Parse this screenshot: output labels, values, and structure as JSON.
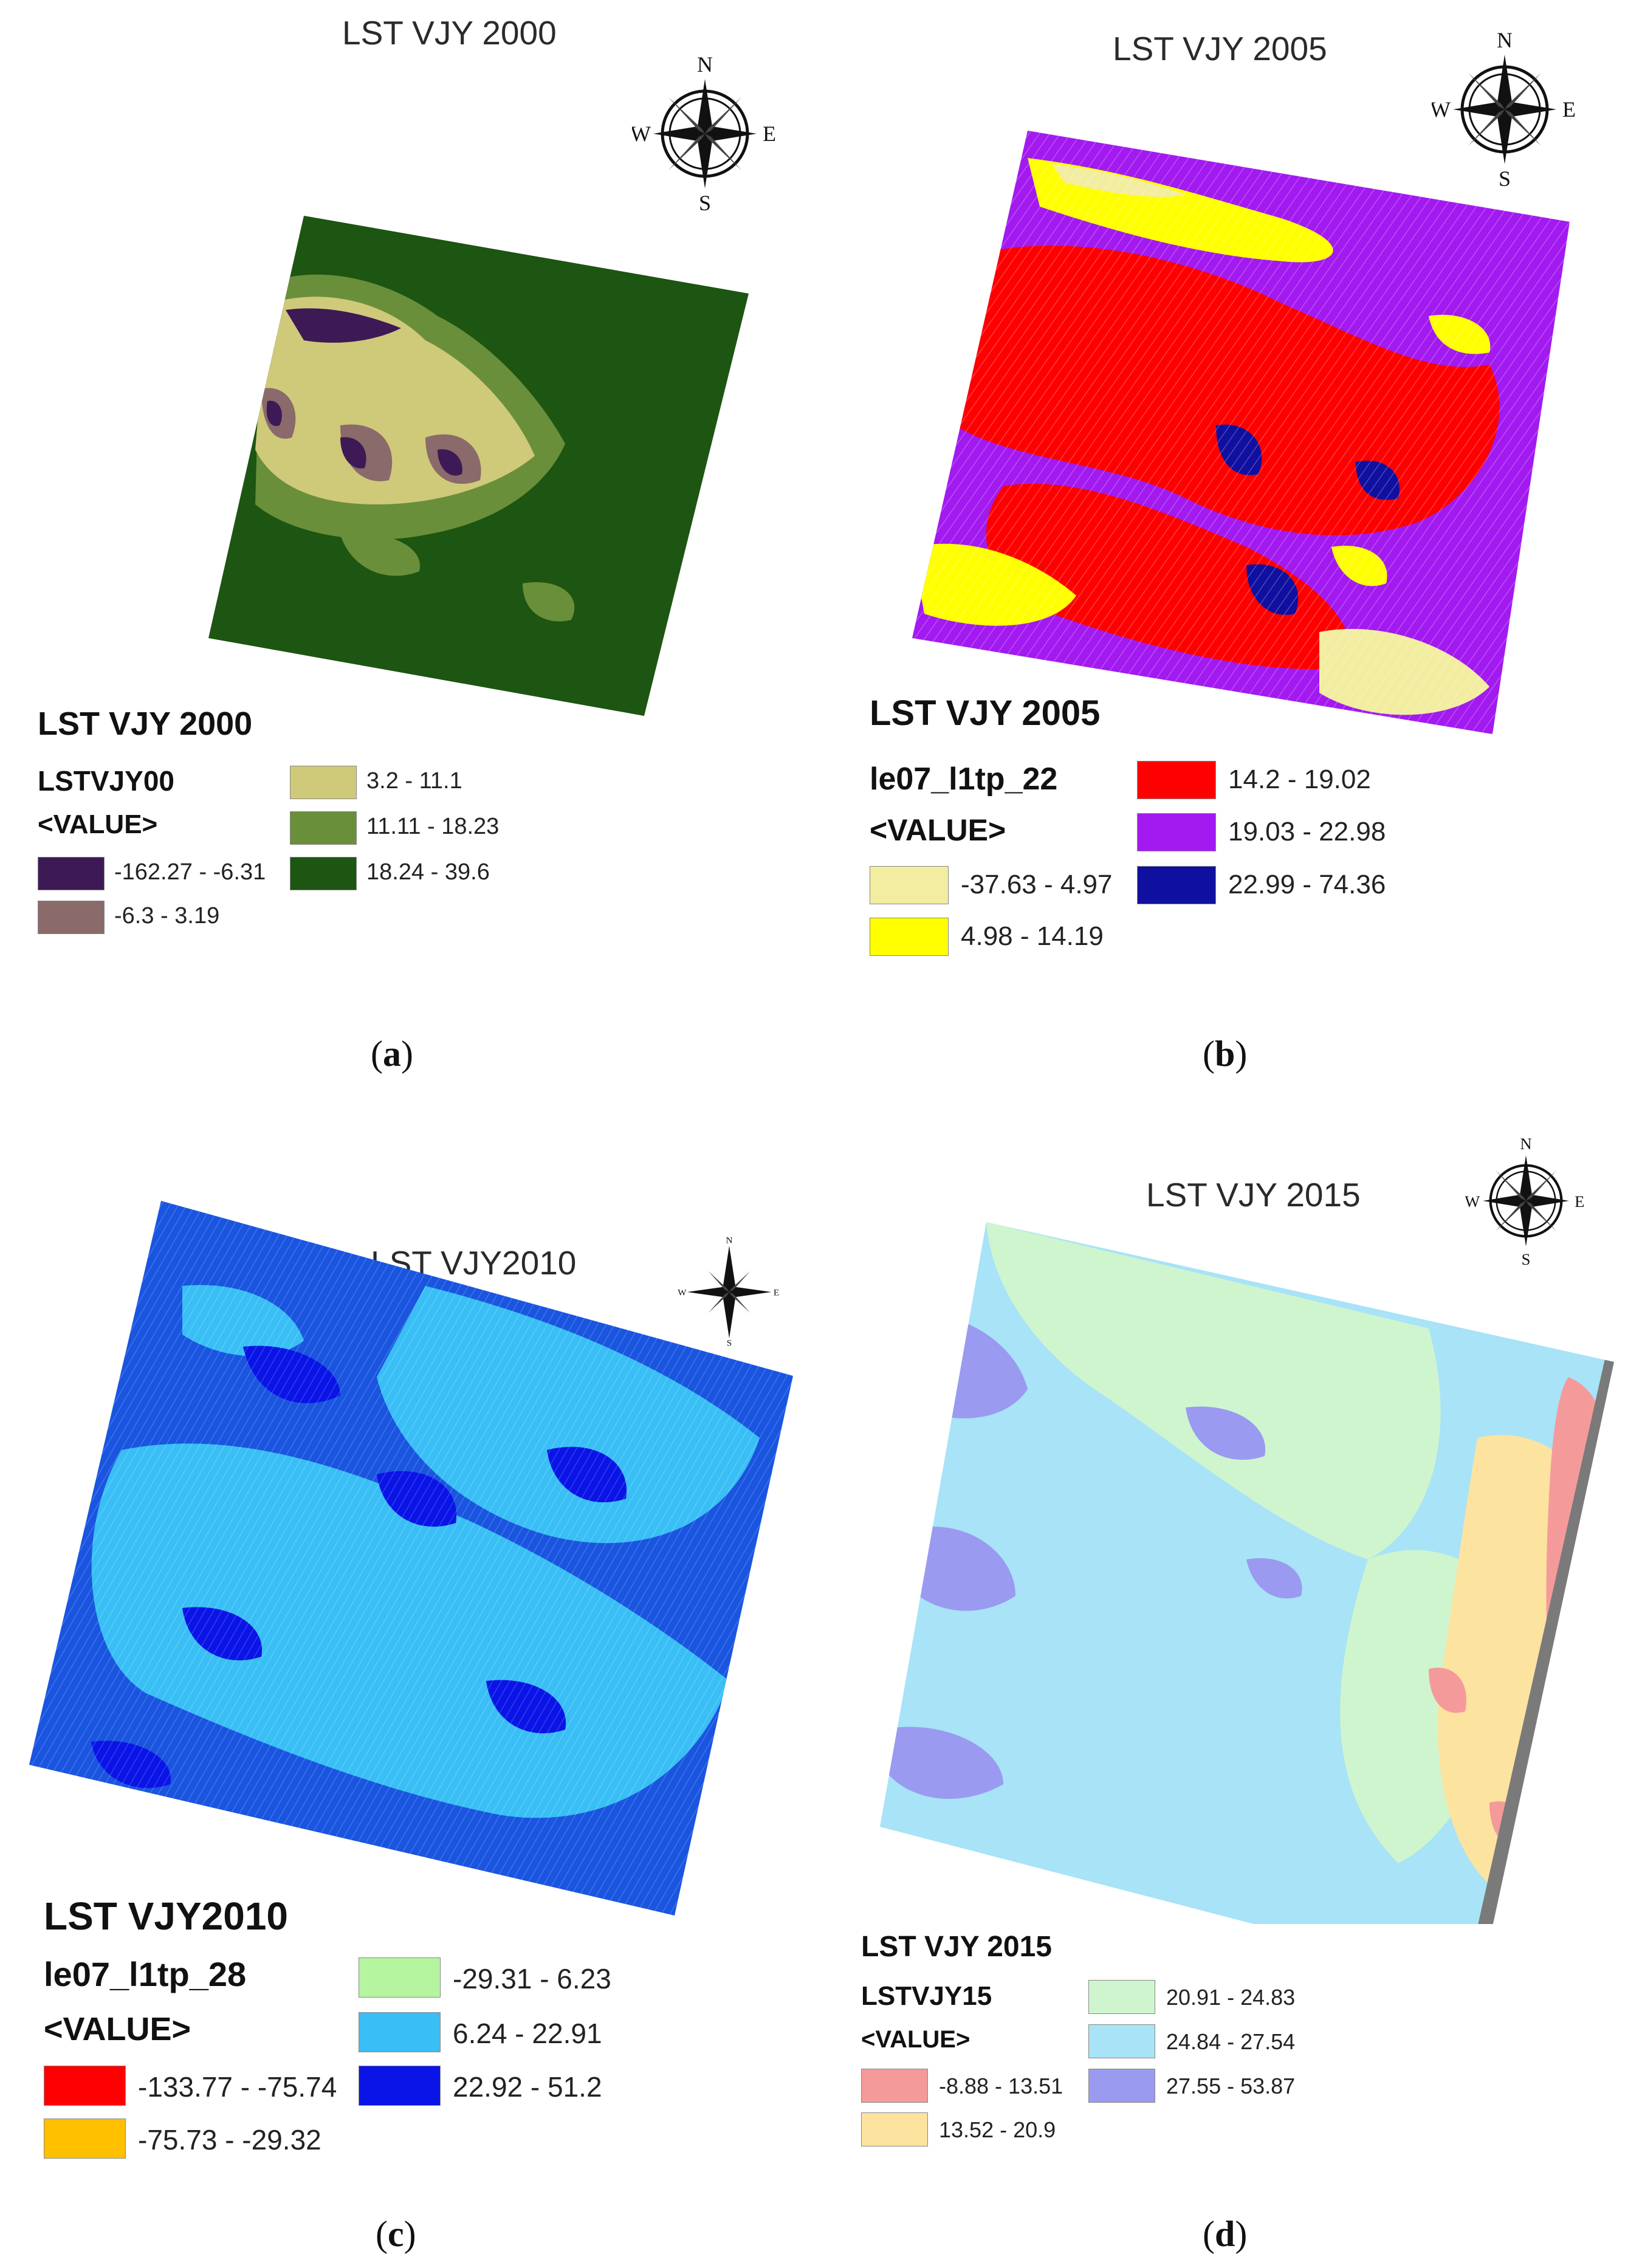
{
  "panels": [
    {
      "id": "a",
      "map_title": "LST VJY 2000",
      "legend_title": "LST VJY 2000",
      "legend_field": "LSTVJY00",
      "legend_value_label": "<VALUE>",
      "classes": [
        {
          "label": "-162.27 - -6.31",
          "color": "#3d1a55"
        },
        {
          "label": "-6.3 - 3.19",
          "color": "#8a6a6a"
        },
        {
          "label": "3.2 - 11.1",
          "color": "#cfc97a"
        },
        {
          "label": "11.11 - 18.23",
          "color": "#6a8f3a"
        },
        {
          "label": "18.24 - 39.6",
          "color": "#1d5512"
        }
      ],
      "caption_letter": "a",
      "compass_labels": {
        "n": "N",
        "s": "S",
        "e": "E",
        "w": "W"
      }
    },
    {
      "id": "b",
      "map_title": "LST VJY 2005",
      "legend_title": "LST VJY 2005",
      "legend_field": "le07_l1tp_22",
      "legend_value_label": "<VALUE>",
      "classes": [
        {
          "label": "-37.63 - 4.97",
          "color": "#f2eda0"
        },
        {
          "label": "4.98 - 14.19",
          "color": "#ffff00"
        },
        {
          "label": "14.2 - 19.02",
          "color": "#ff0000"
        },
        {
          "label": "19.03 - 22.98",
          "color": "#a21af0"
        },
        {
          "label": "22.99 - 74.36",
          "color": "#1010a0"
        }
      ],
      "caption_letter": "b",
      "compass_labels": {
        "n": "N",
        "s": "S",
        "e": "E",
        "w": "W"
      }
    },
    {
      "id": "c",
      "map_title": "LST VJY2010",
      "legend_title": "LST VJY2010",
      "legend_field": "le07_l1tp_28",
      "legend_value_label": "<VALUE>",
      "classes": [
        {
          "label": "-133.77 - -75.74",
          "color": "#ff0000"
        },
        {
          "label": "-75.73 - -29.32",
          "color": "#ffc000"
        },
        {
          "label": "-29.31 - 6.23",
          "color": "#b5f5a0"
        },
        {
          "label": "6.24 - 22.91",
          "color": "#39bff5"
        },
        {
          "label": "22.92 - 51.2",
          "color": "#0a14e6"
        }
      ],
      "caption_letter": "c",
      "compass_labels": {
        "n": "N",
        "s": "S",
        "e": "E",
        "w": "W"
      }
    },
    {
      "id": "d",
      "map_title": "LST VJY 2015",
      "legend_title": "LST VJY 2015",
      "legend_field": "LSTVJY15",
      "legend_value_label": "<VALUE>",
      "classes": [
        {
          "label": "-8.88 - 13.51",
          "color": "#f59a9a"
        },
        {
          "label": "13.52 - 20.9",
          "color": "#fce3a0"
        },
        {
          "label": "20.91 - 24.83",
          "color": "#cff5cf"
        },
        {
          "label": "24.84 - 27.54",
          "color": "#a8e3f7"
        },
        {
          "label": "27.55 - 53.87",
          "color": "#9a9af0"
        }
      ],
      "caption_letter": "d",
      "compass_labels": {
        "n": "N",
        "s": "S",
        "e": "E",
        "w": "W"
      }
    }
  ]
}
